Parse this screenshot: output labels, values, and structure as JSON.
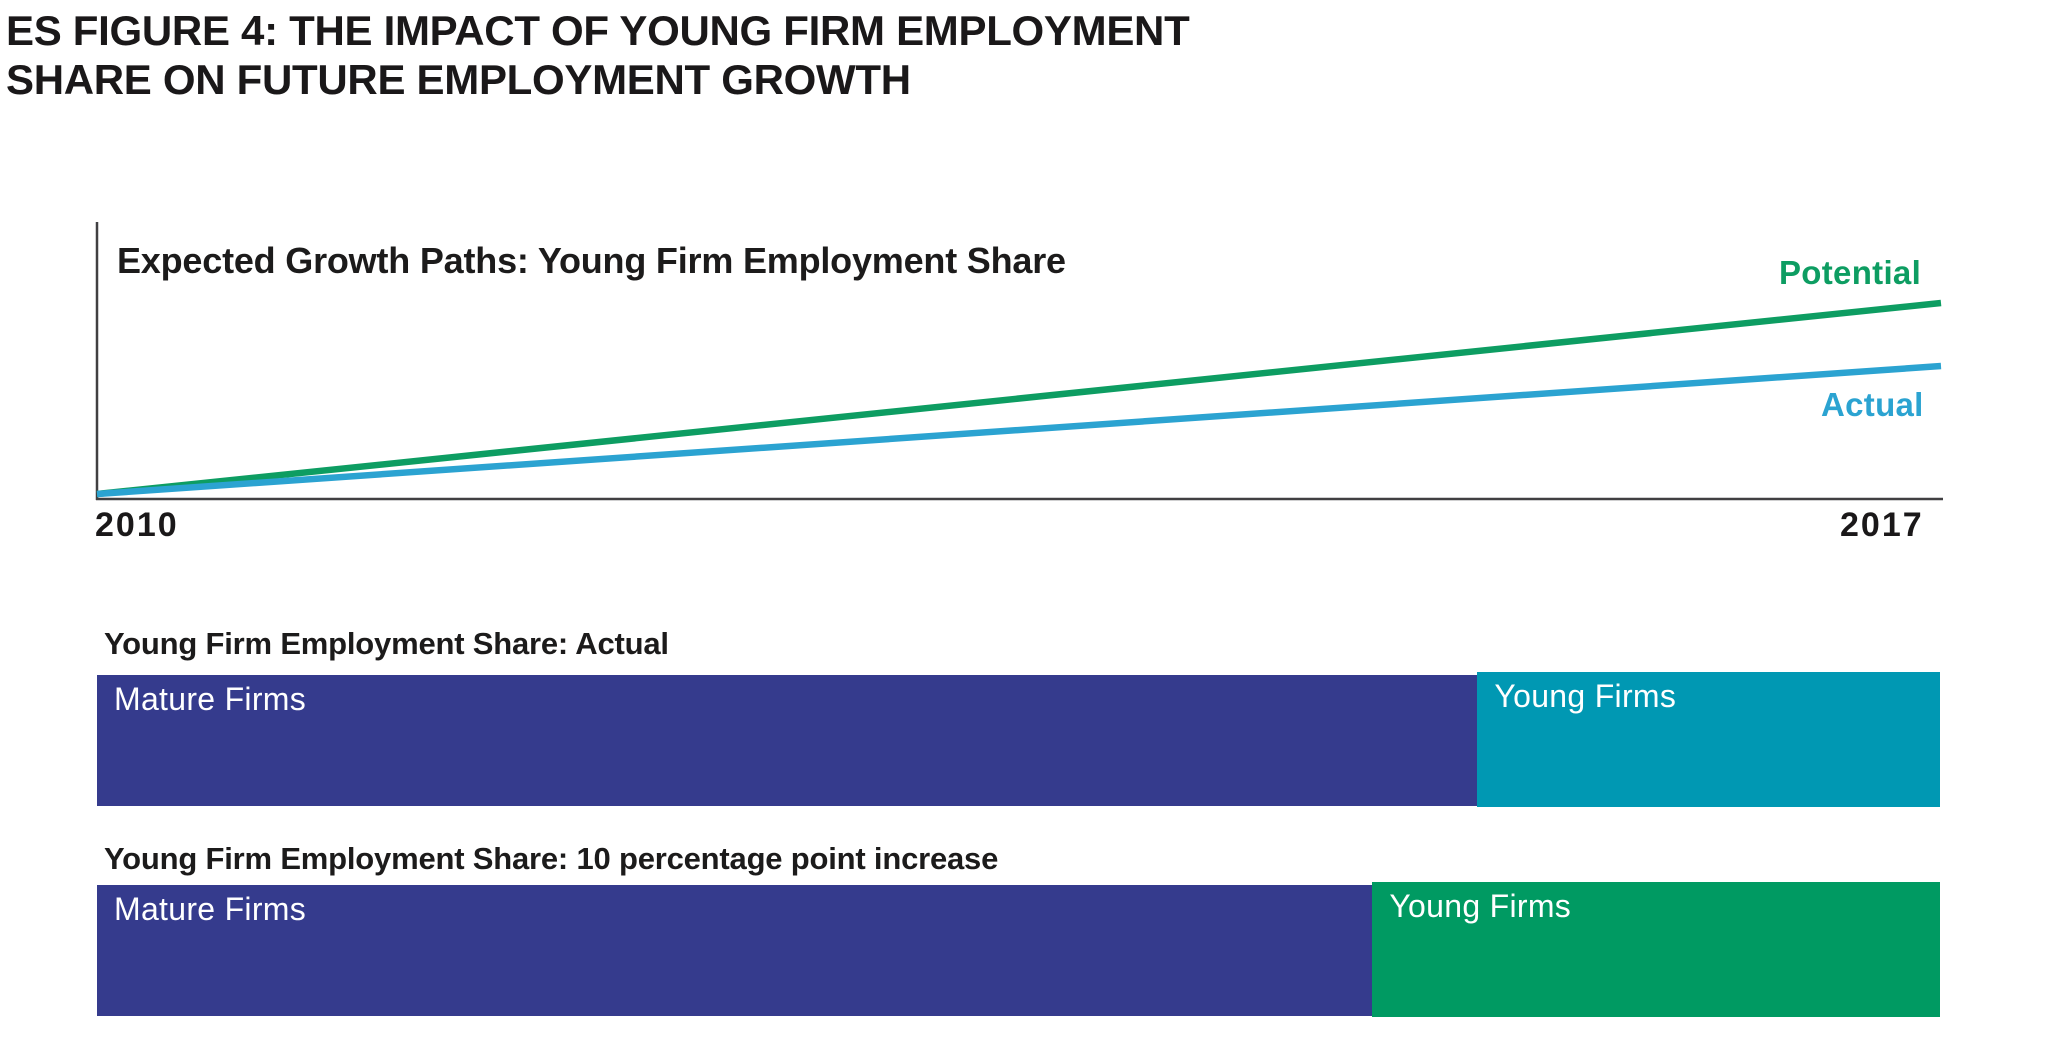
{
  "header": {
    "title_line1": "ES FIGURE 4: THE IMPACT OF YOUNG FIRM EMPLOYMENT",
    "title_line2": "SHARE ON FUTURE EMPLOYMENT GROWTH"
  },
  "colors": {
    "text_black": "#1a1819",
    "axis_gray": "#414042",
    "navy": "#353b8d",
    "teal": "#0098b3",
    "green": "#009a62",
    "line_green": "#0d9d62",
    "line_blue": "#2ba3d1",
    "label_white": "#ffffff"
  },
  "chart_data": [
    {
      "type": "line",
      "title": "Expected Growth Paths: Young Firm Employment Share",
      "x": [
        2010,
        2017
      ],
      "x_tick_labels": [
        "2010",
        "2017"
      ],
      "series": [
        {
          "name": "Potential",
          "values": [
            0,
            100
          ],
          "color": "#0d9d62"
        },
        {
          "name": "Actual",
          "values": [
            0,
            67
          ],
          "color": "#2ba3d1"
        }
      ],
      "xlabel": "",
      "ylabel": "",
      "ylim": [
        0,
        110
      ],
      "grid": false,
      "legend_position": "labels at right end of each line"
    },
    {
      "type": "bar",
      "variant": "stacked-horizontal",
      "title": "Young Firm Employment Share: Actual",
      "categories": [
        "Mature Firms",
        "Young Firms"
      ],
      "values": [
        74.9,
        25.1
      ],
      "colors": [
        "#353b8d",
        "#0098b3"
      ],
      "unit": "share of bar width (%)"
    },
    {
      "type": "bar",
      "variant": "stacked-horizontal",
      "title": "Young Firm Employment Share: 10 percentage point increase",
      "categories": [
        "Mature Firms",
        "Young Firms"
      ],
      "values": [
        69.2,
        30.8
      ],
      "colors": [
        "#353b8d",
        "#009a62"
      ],
      "unit": "share of bar width (%)"
    }
  ]
}
